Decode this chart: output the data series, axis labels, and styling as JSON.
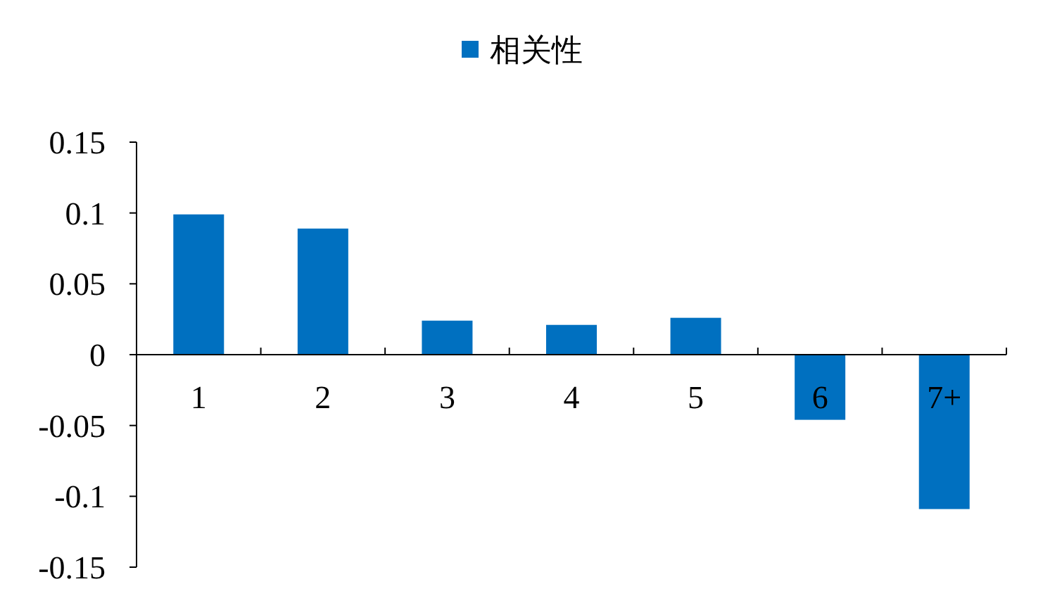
{
  "chart_data": {
    "type": "bar",
    "categories": [
      "1",
      "2",
      "3",
      "4",
      "5",
      "6",
      "7+"
    ],
    "series": [
      {
        "name": "相关性",
        "color": "#0070c0",
        "values": [
          0.099,
          0.089,
          0.024,
          0.021,
          0.026,
          -0.046,
          -0.109
        ]
      }
    ],
    "ylim": [
      -0.15,
      0.15
    ],
    "yticks": [
      -0.15,
      -0.1,
      -0.05,
      0,
      0.05,
      0.1,
      0.15
    ],
    "legend": "top",
    "grid": false
  }
}
